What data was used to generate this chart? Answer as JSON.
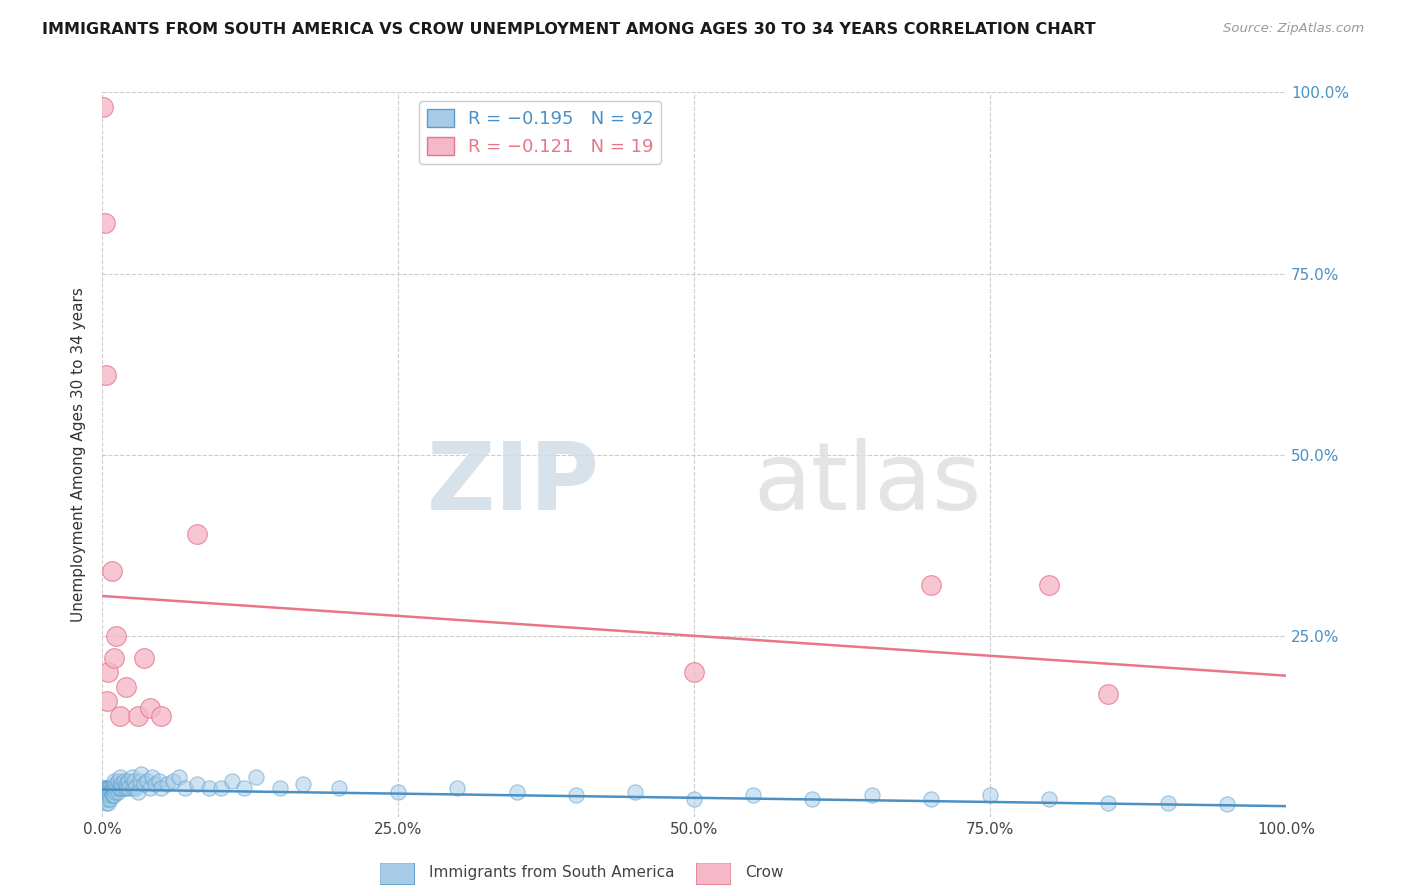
{
  "title": "IMMIGRANTS FROM SOUTH AMERICA VS CROW UNEMPLOYMENT AMONG AGES 30 TO 34 YEARS CORRELATION CHART",
  "source": "Source: ZipAtlas.com",
  "ylabel": "Unemployment Among Ages 30 to 34 years",
  "xlim": [
    0,
    1
  ],
  "ylim": [
    0,
    1
  ],
  "xticks": [
    0.0,
    0.25,
    0.5,
    0.75,
    1.0
  ],
  "xticklabels": [
    "0.0%",
    "25.0%",
    "50.0%",
    "75.0%",
    "100.0%"
  ],
  "yticks_right": [
    0.25,
    0.5,
    0.75,
    1.0
  ],
  "yticklabels_right": [
    "25.0%",
    "50.0%",
    "75.0%",
    "100.0%"
  ],
  "blue_color": "#a8cce8",
  "blue_edge_color": "#5b9ec9",
  "pink_color": "#f5b8c8",
  "pink_edge_color": "#e8758a",
  "blue_line_color": "#4a90c4",
  "pink_line_color": "#e8758a",
  "legend_label_blue": "R = −0.195   N = 92",
  "legend_label_pink": "R = −0.121   N = 19",
  "watermark_zip": "ZIP",
  "watermark_atlas": "atlas",
  "blue_scatter_x": [
    0.001,
    0.001,
    0.001,
    0.002,
    0.002,
    0.002,
    0.002,
    0.003,
    0.003,
    0.003,
    0.003,
    0.003,
    0.004,
    0.004,
    0.004,
    0.004,
    0.005,
    0.005,
    0.005,
    0.005,
    0.006,
    0.006,
    0.006,
    0.007,
    0.007,
    0.007,
    0.008,
    0.008,
    0.008,
    0.009,
    0.009,
    0.01,
    0.01,
    0.01,
    0.011,
    0.011,
    0.012,
    0.013,
    0.013,
    0.014,
    0.015,
    0.015,
    0.016,
    0.017,
    0.018,
    0.019,
    0.02,
    0.021,
    0.022,
    0.023,
    0.025,
    0.026,
    0.027,
    0.028,
    0.03,
    0.032,
    0.033,
    0.035,
    0.038,
    0.04,
    0.042,
    0.045,
    0.048,
    0.05,
    0.055,
    0.06,
    0.065,
    0.07,
    0.08,
    0.09,
    0.1,
    0.11,
    0.12,
    0.13,
    0.15,
    0.17,
    0.2,
    0.25,
    0.3,
    0.35,
    0.4,
    0.45,
    0.5,
    0.55,
    0.6,
    0.65,
    0.7,
    0.75,
    0.8,
    0.85,
    0.9,
    0.95
  ],
  "blue_scatter_y": [
    0.04,
    0.035,
    0.03,
    0.04,
    0.035,
    0.03,
    0.025,
    0.04,
    0.035,
    0.03,
    0.025,
    0.02,
    0.04,
    0.035,
    0.03,
    0.025,
    0.04,
    0.035,
    0.025,
    0.02,
    0.04,
    0.035,
    0.03,
    0.04,
    0.035,
    0.025,
    0.04,
    0.035,
    0.03,
    0.04,
    0.03,
    0.05,
    0.04,
    0.03,
    0.045,
    0.035,
    0.04,
    0.05,
    0.035,
    0.04,
    0.055,
    0.04,
    0.045,
    0.04,
    0.05,
    0.04,
    0.045,
    0.04,
    0.05,
    0.04,
    0.055,
    0.04,
    0.05,
    0.04,
    0.035,
    0.05,
    0.06,
    0.045,
    0.05,
    0.04,
    0.055,
    0.045,
    0.05,
    0.04,
    0.045,
    0.05,
    0.055,
    0.04,
    0.045,
    0.04,
    0.04,
    0.05,
    0.04,
    0.055,
    0.04,
    0.045,
    0.04,
    0.035,
    0.04,
    0.035,
    0.03,
    0.035,
    0.025,
    0.03,
    0.025,
    0.03,
    0.025,
    0.03,
    0.025,
    0.02,
    0.02,
    0.018
  ],
  "pink_scatter_x": [
    0.001,
    0.002,
    0.003,
    0.004,
    0.005,
    0.008,
    0.01,
    0.012,
    0.015,
    0.02,
    0.03,
    0.035,
    0.04,
    0.05,
    0.08,
    0.5,
    0.7,
    0.8,
    0.85
  ],
  "pink_scatter_y": [
    0.98,
    0.82,
    0.61,
    0.16,
    0.2,
    0.34,
    0.22,
    0.25,
    0.14,
    0.18,
    0.14,
    0.22,
    0.15,
    0.14,
    0.39,
    0.2,
    0.32,
    0.32,
    0.17
  ],
  "blue_trend_x": [
    0.0,
    1.0
  ],
  "blue_trend_y": [
    0.038,
    0.015
  ],
  "pink_trend_x": [
    0.0,
    1.0
  ],
  "pink_trend_y": [
    0.305,
    0.195
  ]
}
